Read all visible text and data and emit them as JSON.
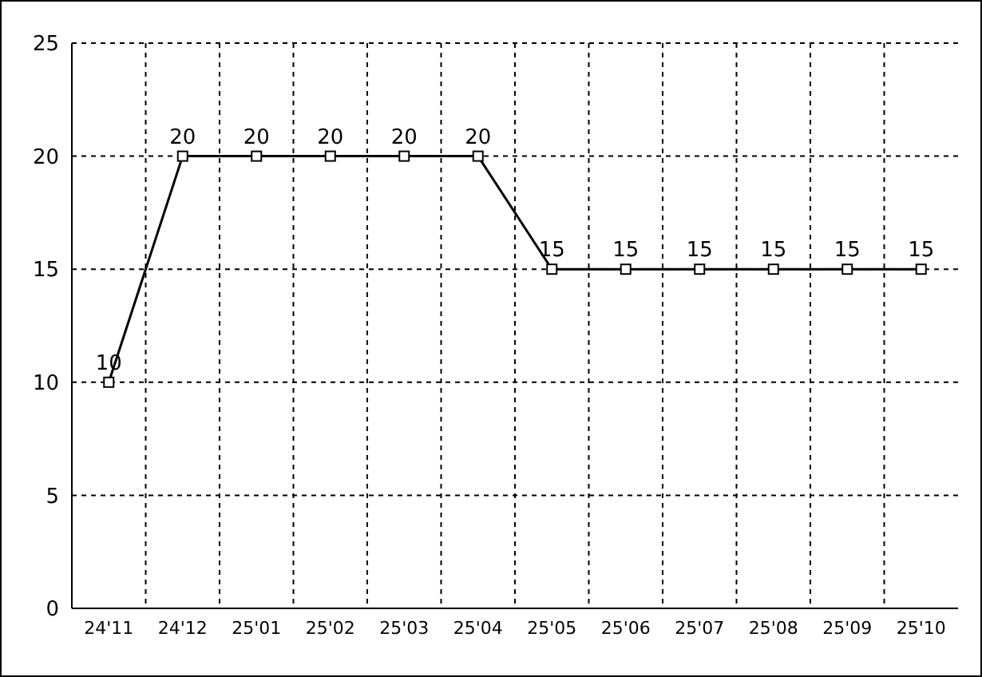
{
  "chart_data": {
    "type": "line",
    "categories": [
      "24'11",
      "24'12",
      "25'01",
      "25'02",
      "25'03",
      "25'04",
      "25'05",
      "25'06",
      "25'07",
      "25'08",
      "25'09",
      "25'10"
    ],
    "values": [
      10,
      20,
      20,
      20,
      20,
      20,
      15,
      15,
      15,
      15,
      15,
      15
    ],
    "color": "#000000",
    "ylim": [
      0,
      25
    ],
    "yticks": [
      0,
      5,
      10,
      15,
      20,
      25
    ],
    "grid": true,
    "marker": "square",
    "line_style": "solid",
    "data_labels": true
  }
}
